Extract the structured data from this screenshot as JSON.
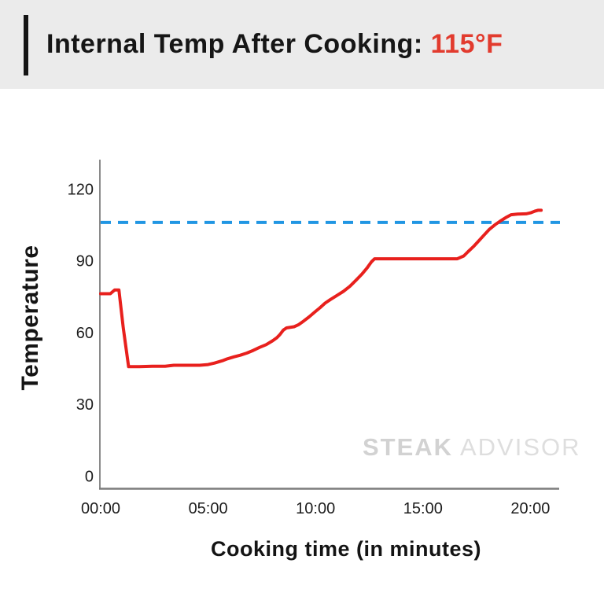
{
  "header": {
    "title_prefix": "Internal Temp After Cooking: ",
    "title_value": "115°F",
    "accent_color": "#e23b2e",
    "bar_color": "#141414",
    "background_color": "#ebebeb"
  },
  "watermark": {
    "bold_text": "STEAK",
    "light_text": " ADVISOR"
  },
  "chart_data": {
    "type": "line",
    "title": "Internal Temp After Cooking: 115°F",
    "xlabel": "Cooking time (in minutes)",
    "ylabel": "Temperature",
    "x_tick_labels": [
      "00:00",
      "05:00",
      "10:00",
      "15:00",
      "20:00"
    ],
    "x_tick_minutes": [
      0,
      5,
      10,
      15,
      20
    ],
    "y_tick_labels": [
      "0",
      "30",
      "60",
      "90",
      "120"
    ],
    "y_ticks": [
      0,
      30,
      60,
      90,
      120
    ],
    "xlim_minutes": [
      0,
      21.3
    ],
    "ylim": [
      0,
      132
    ],
    "grid": false,
    "legend": "none",
    "reference_line": {
      "value": 106,
      "style": "dashed",
      "color": "#2196e3"
    },
    "series": [
      {
        "name": "internal-temperature",
        "color": "#e8201d",
        "points": [
          [
            0.0,
            76.2
          ],
          [
            0.45,
            76.2
          ],
          [
            0.65,
            77.8
          ],
          [
            0.85,
            77.8
          ],
          [
            1.05,
            62.0
          ],
          [
            1.3,
            45.7
          ],
          [
            1.8,
            45.7
          ],
          [
            2.4,
            45.9
          ],
          [
            3.0,
            45.9
          ],
          [
            3.4,
            46.3
          ],
          [
            4.6,
            46.3
          ],
          [
            5.0,
            46.6
          ],
          [
            5.3,
            47.2
          ],
          [
            5.7,
            48.3
          ],
          [
            5.9,
            49.0
          ],
          [
            6.2,
            49.8
          ],
          [
            6.5,
            50.5
          ],
          [
            6.8,
            51.4
          ],
          [
            7.1,
            52.5
          ],
          [
            7.4,
            53.8
          ],
          [
            7.7,
            54.9
          ],
          [
            8.0,
            56.5
          ],
          [
            8.2,
            57.8
          ],
          [
            8.35,
            59.2
          ],
          [
            8.5,
            61.0
          ],
          [
            8.65,
            61.9
          ],
          [
            9.0,
            62.4
          ],
          [
            9.2,
            63.2
          ],
          [
            9.45,
            64.8
          ],
          [
            9.7,
            66.5
          ],
          [
            10.0,
            68.8
          ],
          [
            10.2,
            70.3
          ],
          [
            10.45,
            72.3
          ],
          [
            10.7,
            73.8
          ],
          [
            11.0,
            75.5
          ],
          [
            11.3,
            77.2
          ],
          [
            11.6,
            79.3
          ],
          [
            11.9,
            82.0
          ],
          [
            12.15,
            84.3
          ],
          [
            12.4,
            87.0
          ],
          [
            12.6,
            89.5
          ],
          [
            12.75,
            90.8
          ],
          [
            14.5,
            90.8
          ],
          [
            16.6,
            90.8
          ],
          [
            16.9,
            92.0
          ],
          [
            17.1,
            93.8
          ],
          [
            17.35,
            95.9
          ],
          [
            17.6,
            98.3
          ],
          [
            17.85,
            100.8
          ],
          [
            18.1,
            103.2
          ],
          [
            18.35,
            105.0
          ],
          [
            18.6,
            106.6
          ],
          [
            18.85,
            108.0
          ],
          [
            19.1,
            109.2
          ],
          [
            19.4,
            109.5
          ],
          [
            19.8,
            109.6
          ],
          [
            20.0,
            110.0
          ],
          [
            20.2,
            110.7
          ],
          [
            20.35,
            111.1
          ],
          [
            20.5,
            111.1
          ]
        ]
      }
    ]
  }
}
